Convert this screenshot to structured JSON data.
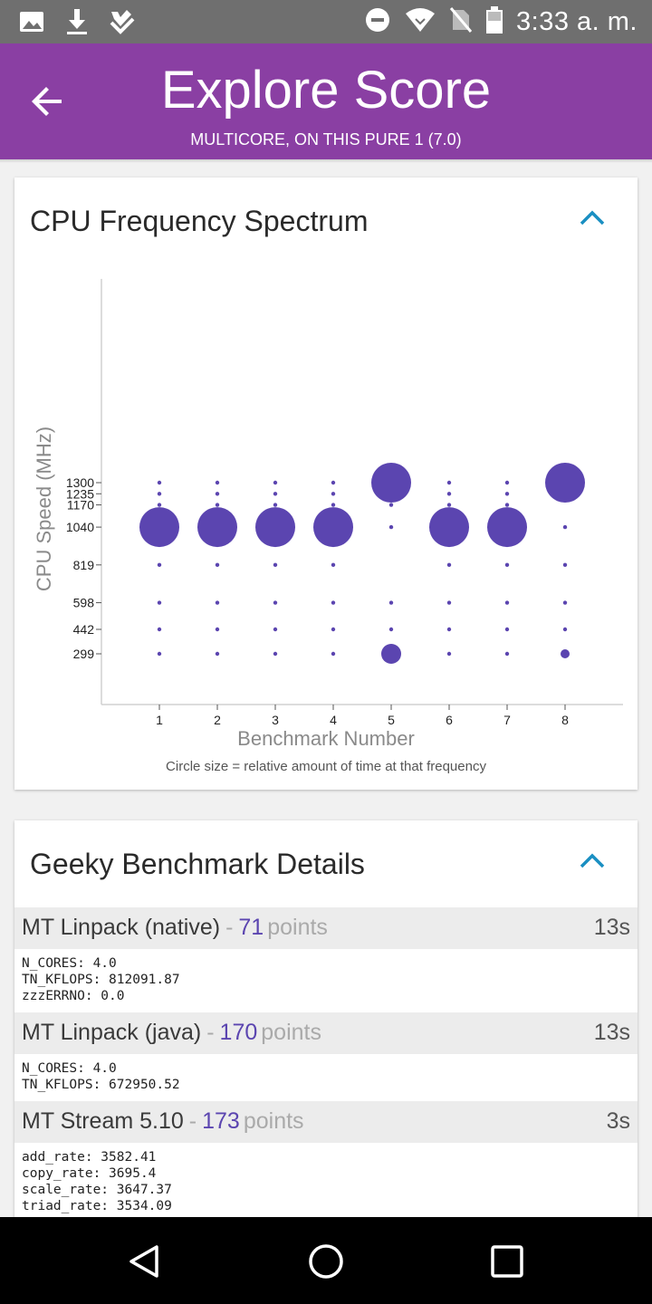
{
  "status_bar": {
    "time": "3:33 a. m.",
    "left_icons": [
      "image-icon",
      "download-icon",
      "tasks-check-icon"
    ],
    "right_icons": [
      "do-not-disturb-icon",
      "wifi-icon",
      "no-sim-icon",
      "battery-icon"
    ]
  },
  "app_bar": {
    "title": "Explore Score",
    "subtitle": "MULTICORE, ON THIS PURE 1 (7.0)",
    "color": "#8a3fa3"
  },
  "spectrum_card": {
    "title": "CPU Frequency Spectrum",
    "note": "Circle size = relative amount of time at that frequency"
  },
  "chart_data": {
    "type": "scatter",
    "title": "",
    "xlabel": "Benchmark Number",
    "ylabel": "CPU Speed (MHz)",
    "x": [
      1,
      2,
      3,
      4,
      5,
      6,
      7,
      8
    ],
    "y_ticks": [
      299,
      442,
      598,
      819,
      1040,
      1170,
      1235,
      1300
    ],
    "point_color": "#5b45b0",
    "points": [
      {
        "x": 1,
        "y": 1300,
        "size": "small"
      },
      {
        "x": 1,
        "y": 1235,
        "size": "small"
      },
      {
        "x": 1,
        "y": 1170,
        "size": "small"
      },
      {
        "x": 1,
        "y": 1040,
        "size": "large"
      },
      {
        "x": 1,
        "y": 819,
        "size": "small"
      },
      {
        "x": 1,
        "y": 598,
        "size": "small"
      },
      {
        "x": 1,
        "y": 442,
        "size": "small"
      },
      {
        "x": 1,
        "y": 299,
        "size": "small"
      },
      {
        "x": 2,
        "y": 1300,
        "size": "small"
      },
      {
        "x": 2,
        "y": 1235,
        "size": "small"
      },
      {
        "x": 2,
        "y": 1170,
        "size": "small"
      },
      {
        "x": 2,
        "y": 1040,
        "size": "large"
      },
      {
        "x": 2,
        "y": 819,
        "size": "small"
      },
      {
        "x": 2,
        "y": 598,
        "size": "small"
      },
      {
        "x": 2,
        "y": 442,
        "size": "small"
      },
      {
        "x": 2,
        "y": 299,
        "size": "small"
      },
      {
        "x": 3,
        "y": 1300,
        "size": "small"
      },
      {
        "x": 3,
        "y": 1235,
        "size": "small"
      },
      {
        "x": 3,
        "y": 1170,
        "size": "small"
      },
      {
        "x": 3,
        "y": 1040,
        "size": "large"
      },
      {
        "x": 3,
        "y": 819,
        "size": "small"
      },
      {
        "x": 3,
        "y": 598,
        "size": "small"
      },
      {
        "x": 3,
        "y": 442,
        "size": "small"
      },
      {
        "x": 3,
        "y": 299,
        "size": "small"
      },
      {
        "x": 4,
        "y": 1300,
        "size": "small"
      },
      {
        "x": 4,
        "y": 1235,
        "size": "small"
      },
      {
        "x": 4,
        "y": 1170,
        "size": "small"
      },
      {
        "x": 4,
        "y": 1040,
        "size": "large"
      },
      {
        "x": 4,
        "y": 819,
        "size": "small"
      },
      {
        "x": 4,
        "y": 598,
        "size": "small"
      },
      {
        "x": 4,
        "y": 442,
        "size": "small"
      },
      {
        "x": 4,
        "y": 299,
        "size": "small"
      },
      {
        "x": 5,
        "y": 1300,
        "size": "large"
      },
      {
        "x": 5,
        "y": 1170,
        "size": "small"
      },
      {
        "x": 5,
        "y": 1040,
        "size": "small"
      },
      {
        "x": 5,
        "y": 598,
        "size": "small"
      },
      {
        "x": 5,
        "y": 442,
        "size": "small"
      },
      {
        "x": 5,
        "y": 299,
        "size": "medium"
      },
      {
        "x": 6,
        "y": 1300,
        "size": "small"
      },
      {
        "x": 6,
        "y": 1235,
        "size": "small"
      },
      {
        "x": 6,
        "y": 1170,
        "size": "small"
      },
      {
        "x": 6,
        "y": 1040,
        "size": "large"
      },
      {
        "x": 6,
        "y": 819,
        "size": "small"
      },
      {
        "x": 6,
        "y": 598,
        "size": "small"
      },
      {
        "x": 6,
        "y": 442,
        "size": "small"
      },
      {
        "x": 6,
        "y": 299,
        "size": "small"
      },
      {
        "x": 7,
        "y": 1300,
        "size": "small"
      },
      {
        "x": 7,
        "y": 1235,
        "size": "small"
      },
      {
        "x": 7,
        "y": 1170,
        "size": "small"
      },
      {
        "x": 7,
        "y": 1040,
        "size": "large"
      },
      {
        "x": 7,
        "y": 819,
        "size": "small"
      },
      {
        "x": 7,
        "y": 598,
        "size": "small"
      },
      {
        "x": 7,
        "y": 442,
        "size": "small"
      },
      {
        "x": 7,
        "y": 299,
        "size": "small"
      },
      {
        "x": 8,
        "y": 1300,
        "size": "large"
      },
      {
        "x": 8,
        "y": 1040,
        "size": "small"
      },
      {
        "x": 8,
        "y": 819,
        "size": "small"
      },
      {
        "x": 8,
        "y": 598,
        "size": "small"
      },
      {
        "x": 8,
        "y": 442,
        "size": "small"
      },
      {
        "x": 8,
        "y": 299,
        "size": "medium-small"
      }
    ]
  },
  "details_card": {
    "title": "Geeky Benchmark Details",
    "benchmarks": [
      {
        "name": "MT Linpack (native)",
        "separator": "-",
        "points": "71",
        "points_label": "points",
        "time": "13s",
        "details": "N_CORES: 4.0\nTN_KFLOPS: 812091.87\nzzzERRNO: 0.0"
      },
      {
        "name": "MT Linpack (java)",
        "separator": "-",
        "points": "170",
        "points_label": "points",
        "time": "13s",
        "details": "N_CORES: 4.0\nTN_KFLOPS: 672950.52"
      },
      {
        "name": "MT Stream 5.10",
        "separator": "-",
        "points": "173",
        "points_label": "points",
        "time": "3s",
        "details": "add_rate: 3582.41\ncopy_rate: 3695.4\nscale_rate: 3647.37\ntriad_rate: 3534.09"
      }
    ]
  },
  "nav_bar": {
    "icons": [
      "back-nav-icon",
      "home-nav-icon",
      "recents-nav-icon"
    ]
  }
}
